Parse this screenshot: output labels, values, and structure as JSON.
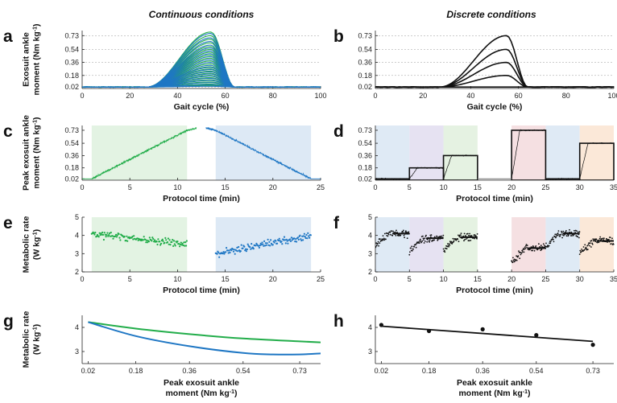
{
  "headings": {
    "left": "Continuous conditions",
    "right": "Discrete conditions"
  },
  "colors": {
    "green": "#22ad4a",
    "blue": "#1f77c4",
    "black": "#111111",
    "band_green": "#e3f3e3",
    "band_blue": "#dde9f5"
  },
  "chart_data": [
    {
      "id": "a",
      "type": "line",
      "letter": "a",
      "title": "",
      "xlabel": "Gait cycle (%)",
      "ylabel": [
        "Exosuit ankle",
        "moment (Nm kg-1)"
      ],
      "xlim": [
        0,
        100
      ],
      "ylim": [
        0,
        0.8
      ],
      "xticks": [
        0,
        20,
        40,
        60,
        80,
        100
      ],
      "yticks": [
        0.02,
        0.18,
        0.36,
        0.54,
        0.73
      ],
      "grid": "horizontal dashed at y ticks",
      "profile": {
        "onset_pct": 27,
        "peak_pct": 54,
        "offset_pct": 64,
        "baseline": 0.02
      },
      "series": [
        {
          "color": "green",
          "peaks": [
            0.78,
            0.73,
            0.68,
            0.63,
            0.58,
            0.54,
            0.5,
            0.46,
            0.42,
            0.38,
            0.34,
            0.3,
            0.27,
            0.24,
            0.21,
            0.18,
            0.15,
            0.12,
            0.09,
            0.06,
            0.04
          ]
        },
        {
          "color": "blue",
          "peaks": [
            0.76,
            0.7,
            0.65,
            0.6,
            0.56,
            0.52,
            0.48,
            0.44,
            0.4,
            0.36,
            0.32,
            0.29,
            0.26,
            0.23,
            0.2,
            0.17,
            0.14,
            0.11,
            0.08,
            0.05,
            0.03
          ]
        }
      ]
    },
    {
      "id": "b",
      "type": "line",
      "letter": "b",
      "title": "",
      "xlabel": "Gait cycle (%)",
      "xlim": [
        0,
        100
      ],
      "ylim": [
        0,
        0.8
      ],
      "xticks": [
        0,
        20,
        40,
        60,
        80,
        100
      ],
      "yticks": [
        0.02,
        0.18,
        0.36,
        0.54,
        0.73
      ],
      "grid": "horizontal dashed at y ticks",
      "profile": {
        "onset_pct": 27,
        "peak_pct": 55,
        "offset_pct": 64,
        "baseline": 0.02
      },
      "series": [
        {
          "color": "black",
          "peaks": [
            0.73,
            0.54,
            0.36,
            0.18,
            0.02
          ]
        }
      ]
    },
    {
      "id": "c",
      "type": "line",
      "letter": "c",
      "xlabel": "Protocol time (min)",
      "ylabel": [
        "Peak exosuit ankle",
        "moment (Nm kg-1)"
      ],
      "xlim": [
        0,
        25
      ],
      "ylim": [
        0,
        0.8
      ],
      "xticks": [
        0,
        5,
        10,
        15,
        20,
        25
      ],
      "yticks": [
        0.02,
        0.18,
        0.36,
        0.54,
        0.73
      ],
      "bands": [
        {
          "x": [
            1,
            11
          ],
          "color": "band_green"
        },
        {
          "x": [
            14,
            24
          ],
          "color": "band_blue"
        }
      ],
      "series": [
        {
          "color": "green",
          "x": [
            0,
            1,
            11,
            12
          ],
          "y": [
            0.02,
            0.02,
            0.73,
            0.76
          ]
        },
        {
          "color": "blue",
          "x": [
            13,
            14,
            24,
            25
          ],
          "y": [
            0.76,
            0.73,
            0.02,
            0.02
          ]
        }
      ]
    },
    {
      "id": "d",
      "type": "line",
      "letter": "d",
      "xlabel": "Protocol time (min)",
      "xlim": [
        0,
        35
      ],
      "ylim": [
        0,
        0.8
      ],
      "xticks": [
        0,
        5,
        10,
        15,
        20,
        25,
        30,
        35
      ],
      "yticks": [
        0.02,
        0.18,
        0.36,
        0.54,
        0.73
      ],
      "bands": [
        {
          "x": [
            0,
            5
          ],
          "color": "#dfeaf5"
        },
        {
          "x": [
            5,
            10
          ],
          "color": "#e6e2f2"
        },
        {
          "x": [
            10,
            15
          ],
          "color": "#e5f2e2"
        },
        {
          "x": [
            20,
            25
          ],
          "color": "#f5e0e2"
        },
        {
          "x": [
            25,
            30
          ],
          "color": "#dfeaf5"
        },
        {
          "x": [
            30,
            35
          ],
          "color": "#fbe8d8"
        }
      ],
      "conditions": [
        {
          "x": [
            0,
            5
          ],
          "level": 0.02
        },
        {
          "x": [
            5,
            10
          ],
          "level": 0.18
        },
        {
          "x": [
            10,
            15
          ],
          "level": 0.36
        },
        {
          "x": [
            20,
            25
          ],
          "level": 0.73
        },
        {
          "x": [
            25,
            30
          ],
          "level": 0.02
        },
        {
          "x": [
            30,
            35
          ],
          "level": 0.54
        }
      ]
    },
    {
      "id": "e",
      "type": "scatter",
      "letter": "e",
      "xlabel": "Protocol time (min)",
      "ylabel": [
        "Metabolic rate",
        "(W kg-1)"
      ],
      "xlim": [
        0,
        25
      ],
      "ylim": [
        2,
        5
      ],
      "xticks": [
        0,
        5,
        10,
        15,
        20,
        25
      ],
      "yticks": [
        2,
        3,
        4,
        5
      ],
      "bands": [
        {
          "x": [
            1,
            11
          ],
          "color": "band_green"
        },
        {
          "x": [
            14,
            24
          ],
          "color": "band_blue"
        }
      ],
      "series": [
        {
          "color": "green",
          "x_range": [
            1,
            11
          ],
          "trend": [
            4.1,
            3.5
          ]
        },
        {
          "color": "blue",
          "x_range": [
            14,
            24
          ],
          "trend": [
            3.0,
            4.0
          ]
        }
      ]
    },
    {
      "id": "f",
      "type": "scatter",
      "letter": "f",
      "xlabel": "Protocol time (min)",
      "xlim": [
        0,
        35
      ],
      "ylim": [
        2,
        5
      ],
      "xticks": [
        0,
        5,
        10,
        15,
        20,
        25,
        30,
        35
      ],
      "yticks": [
        2,
        3,
        4,
        5
      ],
      "bands": [
        {
          "x": [
            0,
            5
          ],
          "color": "#dfeaf5"
        },
        {
          "x": [
            5,
            10
          ],
          "color": "#e6e2f2"
        },
        {
          "x": [
            10,
            15
          ],
          "color": "#e5f2e2"
        },
        {
          "x": [
            20,
            25
          ],
          "color": "#f5e0e2"
        },
        {
          "x": [
            25,
            30
          ],
          "color": "#dfeaf5"
        },
        {
          "x": [
            30,
            35
          ],
          "color": "#fbe8d8"
        }
      ],
      "segments": [
        {
          "x": [
            0,
            5
          ],
          "mean": 4.1
        },
        {
          "x": [
            5,
            10
          ],
          "mean": 3.85
        },
        {
          "x": [
            10,
            15
          ],
          "mean": 3.9
        },
        {
          "x": [
            20,
            25
          ],
          "mean": 3.3
        },
        {
          "x": [
            25,
            30
          ],
          "mean": 4.1
        },
        {
          "x": [
            30,
            35
          ],
          "mean": 3.7
        }
      ]
    },
    {
      "id": "g",
      "type": "line",
      "letter": "g",
      "xlabel": [
        "Peak exosuit ankle",
        "moment (Nm kg-1)"
      ],
      "ylabel": [
        "Metabolic rate",
        "(W kg-1)"
      ],
      "xlim": [
        0,
        0.8
      ],
      "ylim": [
        2.5,
        4.5
      ],
      "xticks": [
        0.02,
        0.18,
        0.36,
        0.54,
        0.73
      ],
      "yticks": [
        3,
        4
      ],
      "series": [
        {
          "color": "green",
          "x": [
            0.02,
            0.18,
            0.36,
            0.54,
            0.73,
            0.8
          ],
          "y": [
            4.22,
            3.95,
            3.72,
            3.54,
            3.42,
            3.38
          ]
        },
        {
          "color": "blue",
          "x": [
            0.02,
            0.18,
            0.36,
            0.54,
            0.64,
            0.73,
            0.8
          ],
          "y": [
            4.22,
            3.64,
            3.22,
            2.94,
            2.88,
            2.88,
            2.92
          ]
        }
      ]
    },
    {
      "id": "h",
      "type": "scatter",
      "letter": "h",
      "xlabel": [
        "Peak exosuit ankle",
        "moment (Nm kg-1)"
      ],
      "xlim": [
        0,
        0.8
      ],
      "ylim": [
        2.5,
        4.5
      ],
      "xticks": [
        0.02,
        0.18,
        0.36,
        0.54,
        0.73
      ],
      "yticks": [
        3,
        4
      ],
      "points": {
        "x": [
          0.02,
          0.18,
          0.36,
          0.54,
          0.73
        ],
        "y": [
          4.1,
          3.85,
          3.92,
          3.68,
          3.28
        ]
      },
      "fit": {
        "x": [
          0.02,
          0.73
        ],
        "y": [
          4.05,
          3.42
        ]
      }
    }
  ]
}
